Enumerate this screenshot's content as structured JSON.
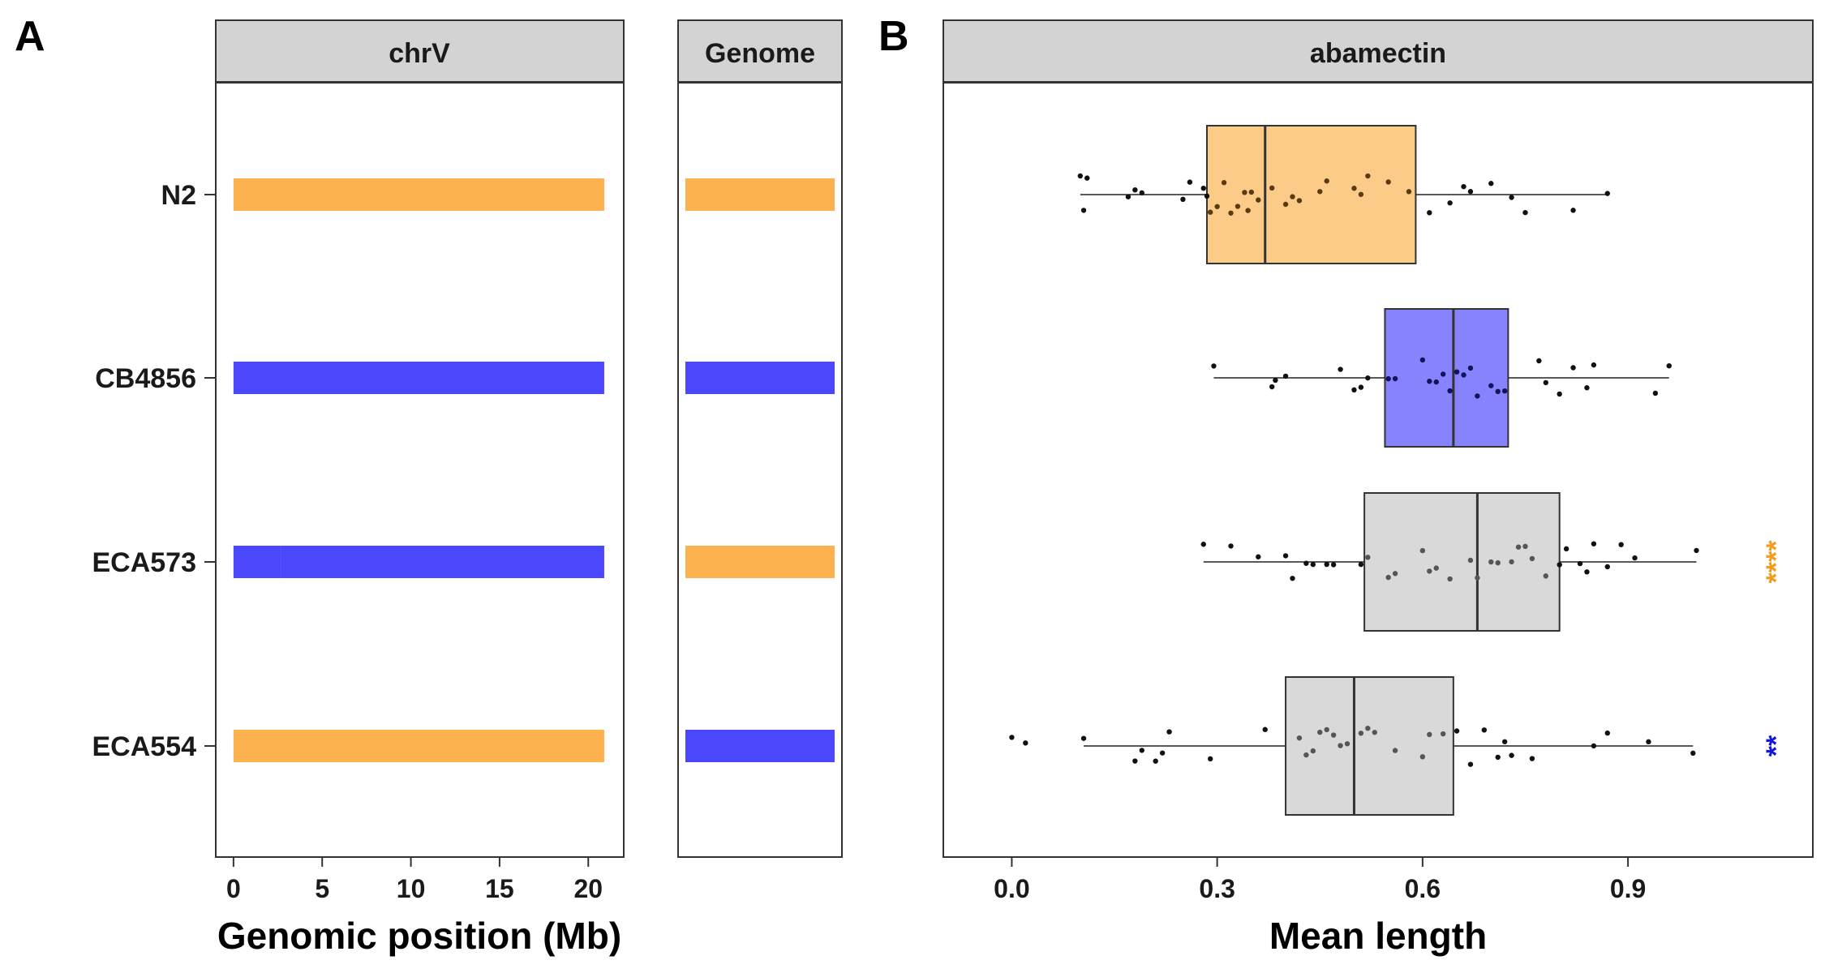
{
  "panels": {
    "a_letter": "A",
    "b_letter": "B"
  },
  "colors": {
    "n2_orange": "#FDB14F",
    "cb_blue": "#4B47FD",
    "box_orange": "#FCCB88",
    "box_blue": "#8683FD",
    "box_gray": "#D9D9D9",
    "strip_fill": "#D3D3D3",
    "sig_orange": "#F39C1B",
    "sig_blue": "#1515E0"
  },
  "strains": [
    "N2",
    "CB4856",
    "ECA573",
    "ECA554"
  ],
  "chart_data": [
    {
      "type": "bar",
      "panel": "A",
      "strip_title": "chrV",
      "xlabel": "Genomic position (Mb)",
      "xlim": [
        -1,
        22
      ],
      "xticks": [
        "0",
        "5",
        "10",
        "15",
        "20"
      ],
      "categories": [
        "N2",
        "CB4856",
        "ECA573",
        "ECA554"
      ],
      "segments": [
        [
          {
            "start": 0,
            "end": 20.9,
            "genotype": "N2"
          }
        ],
        [
          {
            "start": 0,
            "end": 20.9,
            "genotype": "CB4856"
          }
        ],
        [
          {
            "start": 0,
            "end": 2.7,
            "genotype": "CB4856"
          },
          {
            "start": 2.7,
            "end": 20.9,
            "genotype": "CB4856"
          }
        ],
        [
          {
            "start": 0,
            "end": 20.9,
            "genotype": "N2"
          }
        ]
      ]
    },
    {
      "type": "bar",
      "panel": "A",
      "strip_title": "Genome",
      "categories": [
        "N2",
        "CB4856",
        "ECA573",
        "ECA554"
      ],
      "background": [
        "N2",
        "CB4856",
        "N2",
        "CB4856"
      ]
    },
    {
      "type": "box",
      "panel": "B",
      "strip_title": "abamectin",
      "xlabel": "Mean length",
      "xlim": [
        -0.1,
        1.17
      ],
      "xticks": [
        "0.0",
        "0.3",
        "0.6",
        "0.9"
      ],
      "categories": [
        "N2",
        "CB4856",
        "ECA573",
        "ECA554"
      ],
      "boxes": [
        {
          "strain": "N2",
          "min": 0.1,
          "q1": 0.285,
          "median": 0.37,
          "q3": 0.59,
          "max": 0.87
        },
        {
          "strain": "CB4856",
          "min": 0.295,
          "q1": 0.545,
          "median": 0.645,
          "q3": 0.725,
          "max": 0.96
        },
        {
          "strain": "ECA573",
          "min": 0.28,
          "q1": 0.515,
          "median": 0.68,
          "q3": 0.8,
          "max": 1.0
        },
        {
          "strain": "ECA554",
          "min": 0.105,
          "q1": 0.4,
          "median": 0.5,
          "q3": 0.645,
          "max": 0.995
        }
      ],
      "points": [
        [
          0.1,
          0.105,
          0.11,
          0.17,
          0.18,
          0.19,
          0.25,
          0.26,
          0.28,
          0.285,
          0.29,
          0.3,
          0.31,
          0.32,
          0.33,
          0.34,
          0.345,
          0.35,
          0.36,
          0.38,
          0.4,
          0.41,
          0.42,
          0.45,
          0.46,
          0.5,
          0.51,
          0.52,
          0.55,
          0.58,
          0.61,
          0.64,
          0.66,
          0.67,
          0.7,
          0.73,
          0.75,
          0.82,
          0.87
        ],
        [
          0.295,
          0.38,
          0.385,
          0.4,
          0.48,
          0.5,
          0.51,
          0.52,
          0.55,
          0.56,
          0.6,
          0.61,
          0.62,
          0.63,
          0.64,
          0.65,
          0.66,
          0.67,
          0.68,
          0.7,
          0.71,
          0.72,
          0.77,
          0.78,
          0.8,
          0.82,
          0.84,
          0.85,
          0.94,
          0.96
        ],
        [
          0.28,
          0.32,
          0.36,
          0.4,
          0.41,
          0.43,
          0.44,
          0.46,
          0.47,
          0.51,
          0.52,
          0.55,
          0.56,
          0.6,
          0.61,
          0.62,
          0.64,
          0.67,
          0.68,
          0.7,
          0.71,
          0.73,
          0.74,
          0.75,
          0.76,
          0.78,
          0.8,
          0.81,
          0.83,
          0.84,
          0.85,
          0.87,
          0.89,
          0.91,
          1.0
        ],
        [
          0.0,
          0.02,
          0.105,
          0.18,
          0.19,
          0.21,
          0.22,
          0.23,
          0.29,
          0.37,
          0.42,
          0.43,
          0.44,
          0.45,
          0.46,
          0.47,
          0.48,
          0.49,
          0.51,
          0.52,
          0.53,
          0.56,
          0.6,
          0.61,
          0.63,
          0.65,
          0.67,
          0.69,
          0.71,
          0.72,
          0.73,
          0.76,
          0.85,
          0.87,
          0.93,
          0.995
        ]
      ],
      "significance": [
        {
          "strain": "N2",
          "label": ""
        },
        {
          "strain": "CB4856",
          "label": ""
        },
        {
          "strain": "ECA573",
          "label": "****",
          "color": "orange"
        },
        {
          "strain": "ECA554",
          "label": "**",
          "color": "blue"
        }
      ]
    }
  ]
}
